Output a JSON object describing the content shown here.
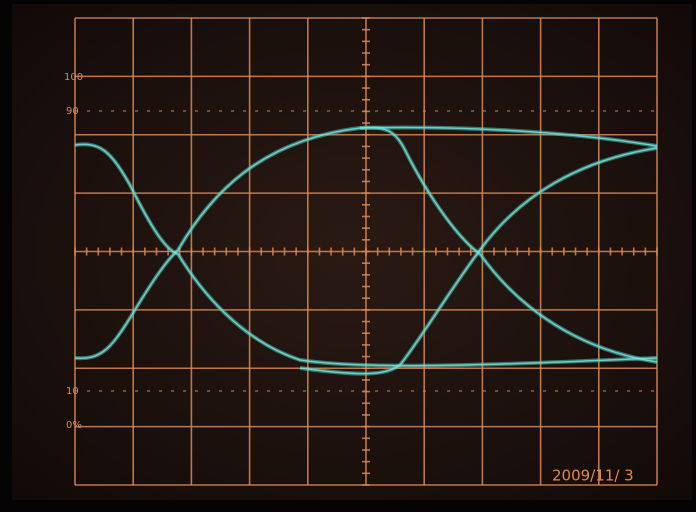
{
  "graticule_labels": [
    "100",
    "90",
    "10",
    "0%"
  ],
  "timestamp": "2009/11/ 3"
}
